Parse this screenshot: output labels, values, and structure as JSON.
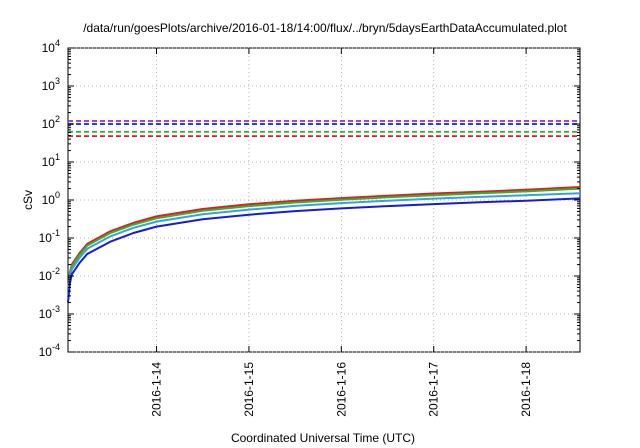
{
  "chart_data": {
    "type": "line",
    "title": "/data/run/goesPlots/archive/2016-01-18/14:00/flux/../bryn/5daysEarthDataAccumulated.plot",
    "xlabel": "Coordinated Universal Time (UTC)",
    "ylabel": "cSv",
    "y_scale": "log",
    "ylim": [
      0.0001,
      10000
    ],
    "xlim": [
      "2016-01-13 01:00",
      "2016-01-18 14:00"
    ],
    "grid": true,
    "legend": "none",
    "x_ticks": [
      "2016-1-14",
      "2016-1-15",
      "2016-1-16",
      "2016-1-17",
      "2016-1-18"
    ],
    "y_ticks": [
      {
        "value": 0.0001,
        "base": "10",
        "exp": "-4"
      },
      {
        "value": 0.001,
        "base": "10",
        "exp": "-3"
      },
      {
        "value": 0.01,
        "base": "10",
        "exp": "-2"
      },
      {
        "value": 0.1,
        "base": "10",
        "exp": "-1"
      },
      {
        "value": 1,
        "base": "10",
        "exp": "0"
      },
      {
        "value": 10,
        "base": "10",
        "exp": "1"
      },
      {
        "value": 100,
        "base": "10",
        "exp": "2"
      },
      {
        "value": 1000,
        "base": "10",
        "exp": "3"
      },
      {
        "value": 10000,
        "base": "10",
        "exp": "4"
      }
    ],
    "series": [
      {
        "color": "#e41a1c",
        "style": "solid",
        "x": [
          "2016-01-13 01:00",
          "2016-01-13 01:30",
          "2016-01-13 02:00",
          "2016-01-13 04:00",
          "2016-01-13 06:00",
          "2016-01-13 12:00",
          "2016-01-13 18:00",
          "2016-01-14 00:00",
          "2016-01-14 12:00",
          "2016-01-15 00:00",
          "2016-01-15 12:00",
          "2016-01-16 00:00",
          "2016-01-16 12:00",
          "2016-01-17 00:00",
          "2016-01-17 12:00",
          "2016-01-18 00:00",
          "2016-01-18 14:00"
        ],
        "y": [
          0.004,
          0.012,
          0.02,
          0.04,
          0.07,
          0.15,
          0.25,
          0.37,
          0.58,
          0.77,
          0.95,
          1.12,
          1.3,
          1.48,
          1.65,
          1.85,
          2.2
        ]
      },
      {
        "color": "#2db32d",
        "style": "solid",
        "x": [
          "2016-01-13 01:00",
          "2016-01-13 01:30",
          "2016-01-13 02:00",
          "2016-01-13 04:00",
          "2016-01-13 06:00",
          "2016-01-13 12:00",
          "2016-01-13 18:00",
          "2016-01-14 00:00",
          "2016-01-14 12:00",
          "2016-01-15 00:00",
          "2016-01-15 12:00",
          "2016-01-16 00:00",
          "2016-01-16 12:00",
          "2016-01-17 00:00",
          "2016-01-17 12:00",
          "2016-01-18 00:00",
          "2016-01-18 14:00"
        ],
        "y": [
          0.0035,
          0.011,
          0.018,
          0.036,
          0.063,
          0.135,
          0.225,
          0.33,
          0.52,
          0.69,
          0.86,
          1.02,
          1.18,
          1.34,
          1.5,
          1.68,
          2.0
        ]
      },
      {
        "color": "#3aa0e0",
        "style": "solid",
        "x": [
          "2016-01-13 01:00",
          "2016-01-13 01:30",
          "2016-01-13 02:00",
          "2016-01-13 04:00",
          "2016-01-13 06:00",
          "2016-01-13 12:00",
          "2016-01-13 18:00",
          "2016-01-14 00:00",
          "2016-01-14 12:00",
          "2016-01-15 00:00",
          "2016-01-15 12:00",
          "2016-01-16 00:00",
          "2016-01-16 12:00",
          "2016-01-17 00:00",
          "2016-01-17 12:00",
          "2016-01-18 00:00",
          "2016-01-18 14:00"
        ],
        "y": [
          0.0028,
          0.009,
          0.015,
          0.03,
          0.052,
          0.11,
          0.185,
          0.27,
          0.42,
          0.56,
          0.7,
          0.83,
          0.96,
          1.09,
          1.21,
          1.33,
          1.5
        ]
      },
      {
        "color": "#1a1ad6",
        "style": "solid",
        "x": [
          "2016-01-13 01:00",
          "2016-01-13 01:30",
          "2016-01-13 02:00",
          "2016-01-13 04:00",
          "2016-01-13 06:00",
          "2016-01-13 12:00",
          "2016-01-13 18:00",
          "2016-01-14 00:00",
          "2016-01-14 12:00",
          "2016-01-15 00:00",
          "2016-01-15 12:00",
          "2016-01-16 00:00",
          "2016-01-16 12:00",
          "2016-01-17 00:00",
          "2016-01-17 12:00",
          "2016-01-18 00:00",
          "2016-01-18 14:00"
        ],
        "y": [
          0.002,
          0.0065,
          0.011,
          0.022,
          0.038,
          0.08,
          0.135,
          0.2,
          0.31,
          0.41,
          0.51,
          0.6,
          0.69,
          0.78,
          0.87,
          0.96,
          1.1
        ]
      }
    ],
    "reference_lines": [
      {
        "y": 120,
        "color": "#8a2be2",
        "style": "dashed"
      },
      {
        "y": 100,
        "color": "#1a1ad6",
        "style": "dashed"
      },
      {
        "y": 62,
        "color": "#2db32d",
        "style": "dashed"
      },
      {
        "y": 48,
        "color": "#e41a1c",
        "style": "dashed"
      }
    ]
  }
}
